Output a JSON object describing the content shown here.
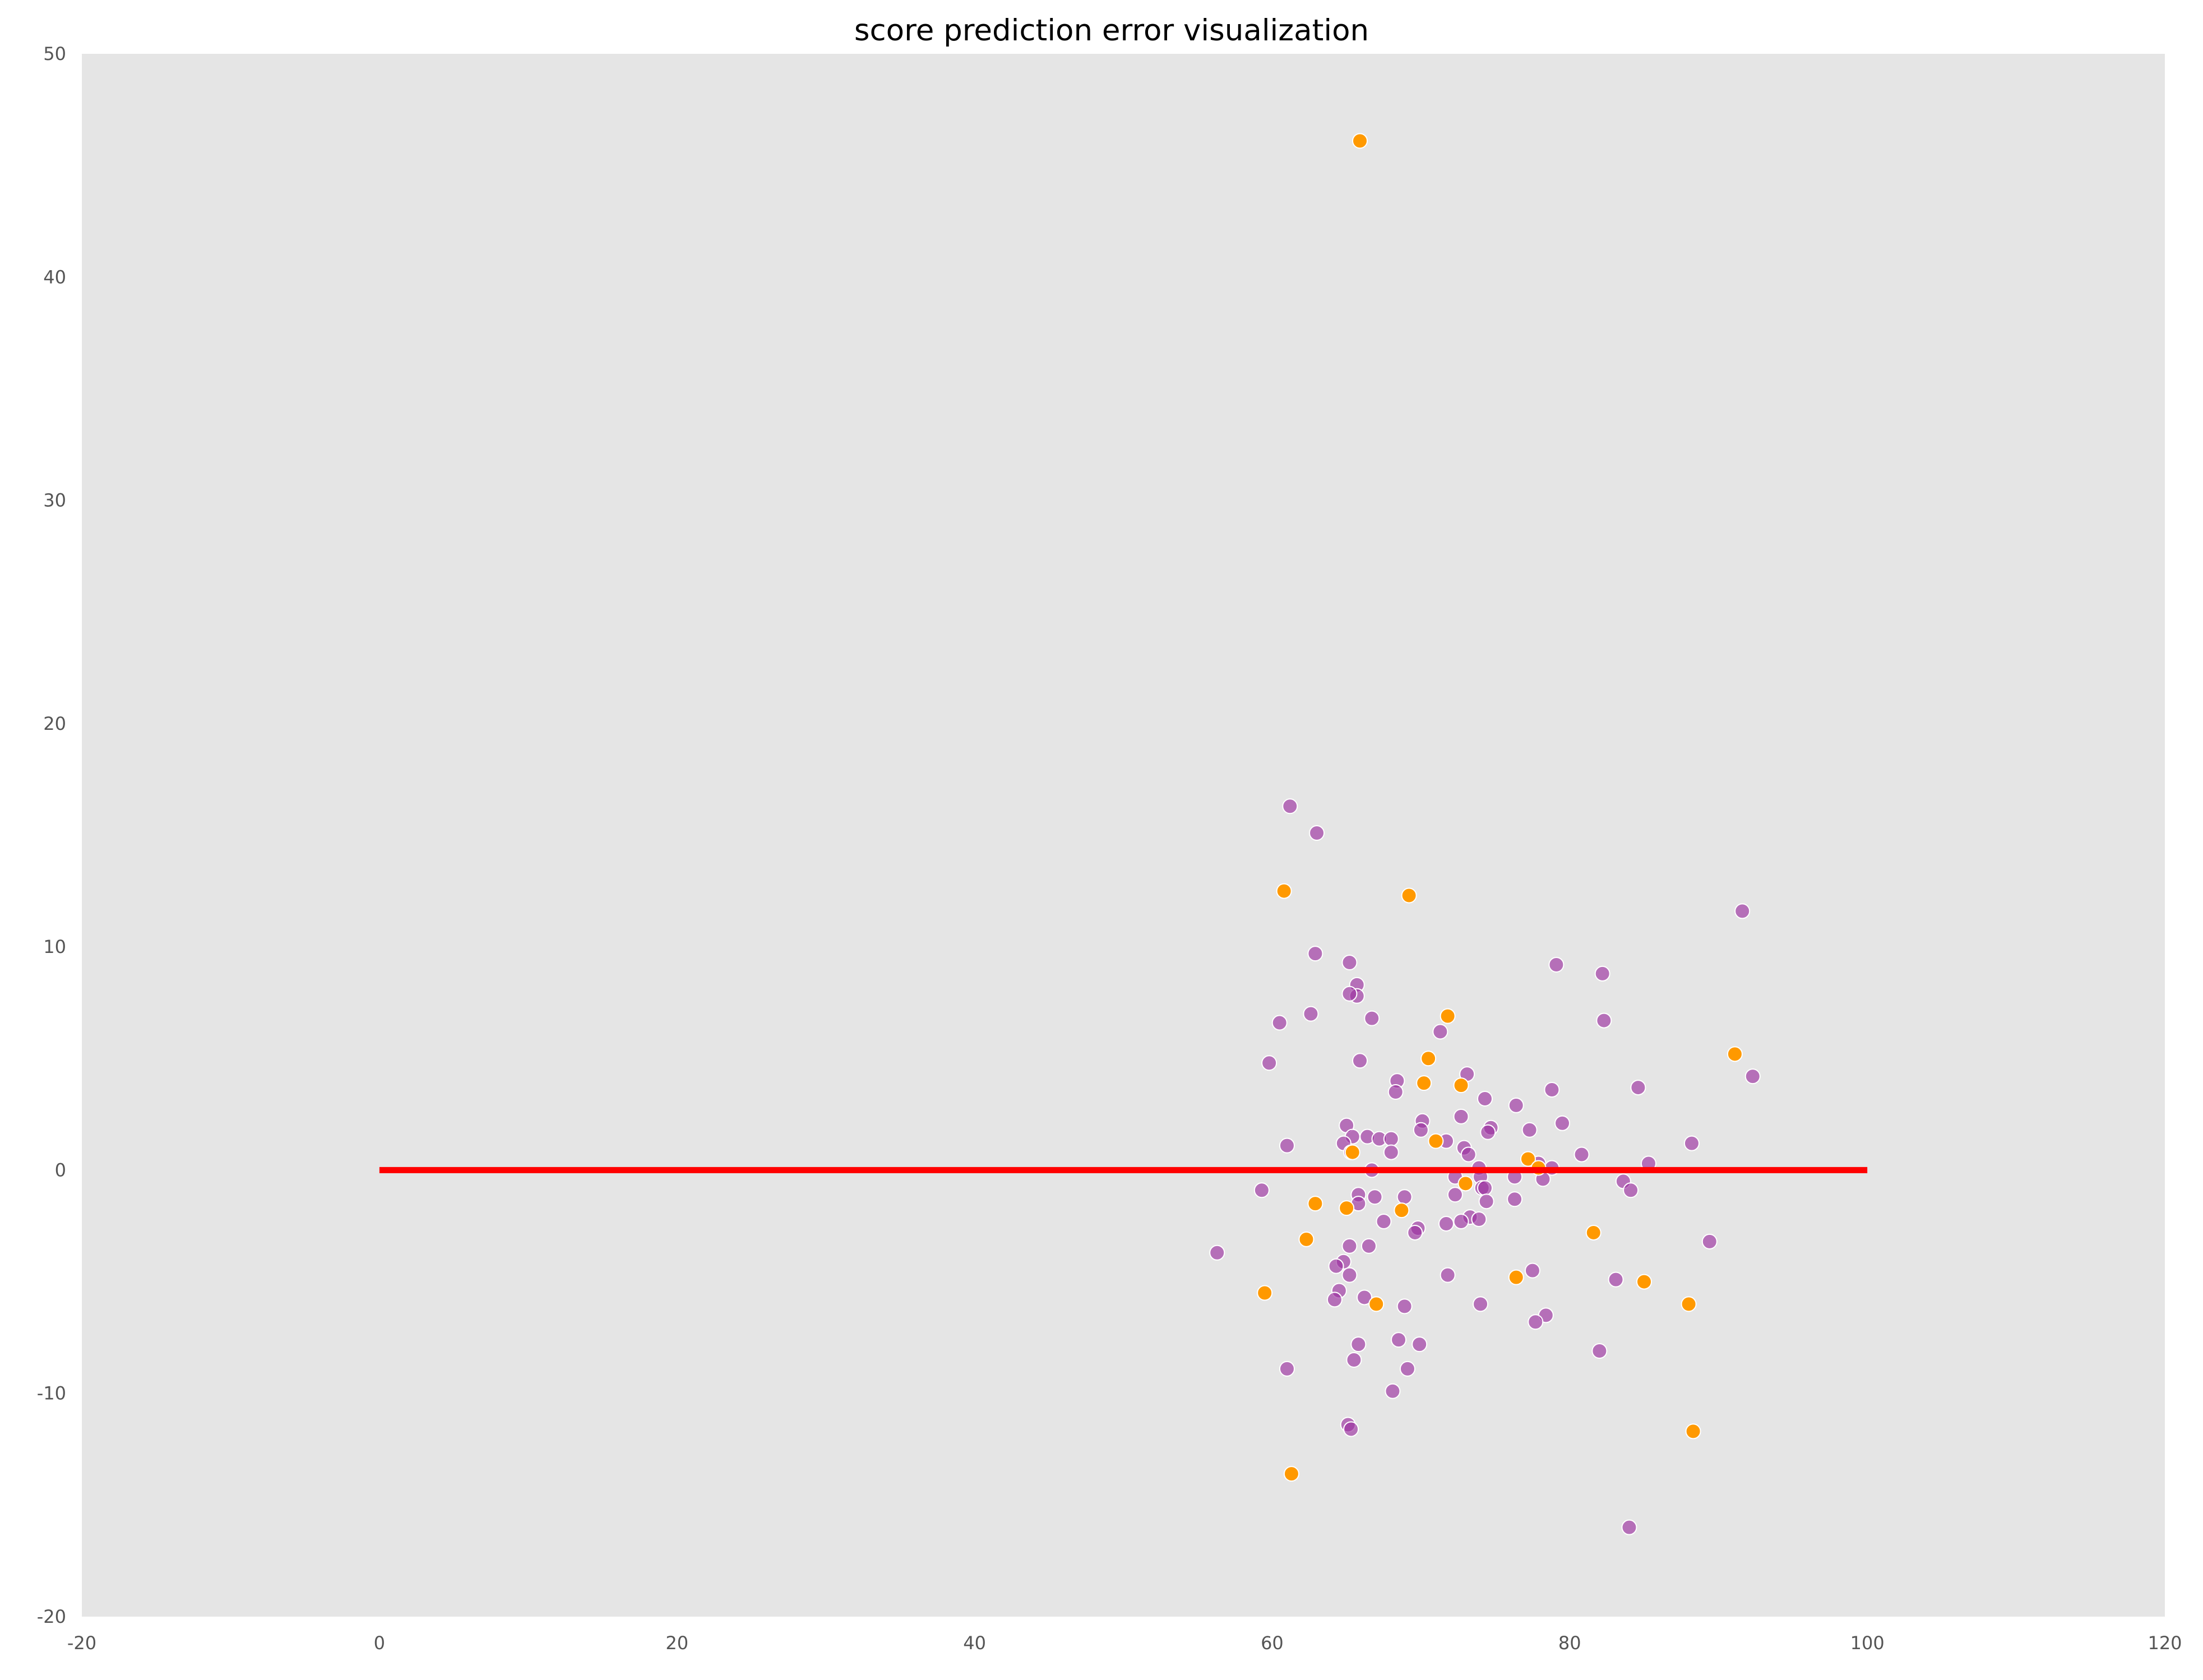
{
  "chart_data": {
    "type": "scatter",
    "title": "score prediction error visualization",
    "xlabel": "",
    "ylabel": "",
    "xlim": [
      -20,
      120
    ],
    "ylim": [
      -20,
      50
    ],
    "xticks": [
      "-20",
      "0",
      "20",
      "40",
      "60",
      "80",
      "100",
      "120"
    ],
    "yticks": [
      "-20",
      "-10",
      "0",
      "10",
      "20",
      "30",
      "40",
      "50"
    ],
    "grid": false,
    "legend": "none",
    "background_color": "#e5e5e5",
    "reference_line": {
      "x": [
        0,
        100
      ],
      "y": [
        0,
        0
      ],
      "color": "#ff0000"
    },
    "series": [
      {
        "color": "#9b30a0",
        "points": [
          [
            61.2,
            16.3
          ],
          [
            63.0,
            15.1
          ],
          [
            91.6,
            11.6
          ],
          [
            62.9,
            9.7
          ],
          [
            65.2,
            9.3
          ],
          [
            79.1,
            9.2
          ],
          [
            82.2,
            8.8
          ],
          [
            65.7,
            8.3
          ],
          [
            65.7,
            7.8
          ],
          [
            65.2,
            7.9
          ],
          [
            62.6,
            7.0
          ],
          [
            66.7,
            6.8
          ],
          [
            60.5,
            6.6
          ],
          [
            82.3,
            6.7
          ],
          [
            71.3,
            6.2
          ],
          [
            59.8,
            4.8
          ],
          [
            65.9,
            4.9
          ],
          [
            73.1,
            4.3
          ],
          [
            92.3,
            4.2
          ],
          [
            68.4,
            4.0
          ],
          [
            78.8,
            3.6
          ],
          [
            84.6,
            3.7
          ],
          [
            68.3,
            3.5
          ],
          [
            74.3,
            3.2
          ],
          [
            76.4,
            2.9
          ],
          [
            72.7,
            2.4
          ],
          [
            70.1,
            2.2
          ],
          [
            79.5,
            2.1
          ],
          [
            65.0,
            2.0
          ],
          [
            74.7,
            1.9
          ],
          [
            77.3,
            1.8
          ],
          [
            74.5,
            1.7
          ],
          [
            70.0,
            1.8
          ],
          [
            66.4,
            1.5
          ],
          [
            65.4,
            1.5
          ],
          [
            67.2,
            1.4
          ],
          [
            68.0,
            1.4
          ],
          [
            71.7,
            1.3
          ],
          [
            88.2,
            1.2
          ],
          [
            61.0,
            1.1
          ],
          [
            64.8,
            1.2
          ],
          [
            72.9,
            1.0
          ],
          [
            73.2,
            0.7
          ],
          [
            68.0,
            0.8
          ],
          [
            80.8,
            0.7
          ],
          [
            65.3,
            0.8
          ],
          [
            77.9,
            0.3
          ],
          [
            85.3,
            0.3
          ],
          [
            73.9,
            0.1
          ],
          [
            78.8,
            0.1
          ],
          [
            66.7,
            0.0
          ],
          [
            72.3,
            -0.3
          ],
          [
            74.0,
            -0.3
          ],
          [
            76.3,
            -0.3
          ],
          [
            78.2,
            -0.4
          ],
          [
            83.6,
            -0.5
          ],
          [
            74.1,
            -0.8
          ],
          [
            74.3,
            -0.8
          ],
          [
            84.1,
            -0.9
          ],
          [
            59.3,
            -0.9
          ],
          [
            72.3,
            -1.1
          ],
          [
            65.8,
            -1.1
          ],
          [
            66.9,
            -1.2
          ],
          [
            68.9,
            -1.2
          ],
          [
            76.3,
            -1.3
          ],
          [
            74.4,
            -1.4
          ],
          [
            65.8,
            -1.5
          ],
          [
            73.3,
            -2.1
          ],
          [
            73.9,
            -2.2
          ],
          [
            72.7,
            -2.3
          ],
          [
            67.5,
            -2.3
          ],
          [
            71.7,
            -2.4
          ],
          [
            69.8,
            -2.6
          ],
          [
            69.6,
            -2.8
          ],
          [
            89.4,
            -3.2
          ],
          [
            65.2,
            -3.4
          ],
          [
            66.5,
            -3.4
          ],
          [
            56.3,
            -3.7
          ],
          [
            64.8,
            -4.1
          ],
          [
            64.3,
            -4.3
          ],
          [
            77.5,
            -4.5
          ],
          [
            71.8,
            -4.7
          ],
          [
            65.2,
            -4.7
          ],
          [
            83.1,
            -4.9
          ],
          [
            64.5,
            -5.4
          ],
          [
            66.2,
            -5.7
          ],
          [
            64.2,
            -5.8
          ],
          [
            74.0,
            -6.0
          ],
          [
            68.9,
            -6.1
          ],
          [
            78.4,
            -6.5
          ],
          [
            77.7,
            -6.8
          ],
          [
            68.5,
            -7.6
          ],
          [
            65.8,
            -7.8
          ],
          [
            69.9,
            -7.8
          ],
          [
            82.0,
            -8.1
          ],
          [
            65.5,
            -8.5
          ],
          [
            61.0,
            -8.9
          ],
          [
            69.1,
            -8.9
          ],
          [
            68.1,
            -9.9
          ],
          [
            65.1,
            -11.4
          ],
          [
            65.3,
            -11.6
          ],
          [
            84.0,
            -16.0
          ]
        ]
      },
      {
        "color": "#ff9900",
        "points": [
          [
            65.9,
            46.1
          ],
          [
            60.8,
            12.5
          ],
          [
            69.2,
            12.3
          ],
          [
            71.8,
            6.9
          ],
          [
            91.1,
            5.2
          ],
          [
            70.5,
            5.0
          ],
          [
            70.2,
            3.9
          ],
          [
            72.7,
            3.8
          ],
          [
            71.0,
            1.3
          ],
          [
            65.4,
            0.8
          ],
          [
            77.2,
            0.5
          ],
          [
            77.9,
            0.1
          ],
          [
            73.0,
            -0.6
          ],
          [
            62.9,
            -1.5
          ],
          [
            65.0,
            -1.7
          ],
          [
            68.7,
            -1.8
          ],
          [
            81.6,
            -2.8
          ],
          [
            62.3,
            -3.1
          ],
          [
            76.4,
            -4.8
          ],
          [
            85.0,
            -5.0
          ],
          [
            59.5,
            -5.5
          ],
          [
            67.0,
            -6.0
          ],
          [
            88.0,
            -6.0
          ],
          [
            88.3,
            -11.7
          ],
          [
            61.3,
            -13.6
          ]
        ]
      }
    ]
  }
}
